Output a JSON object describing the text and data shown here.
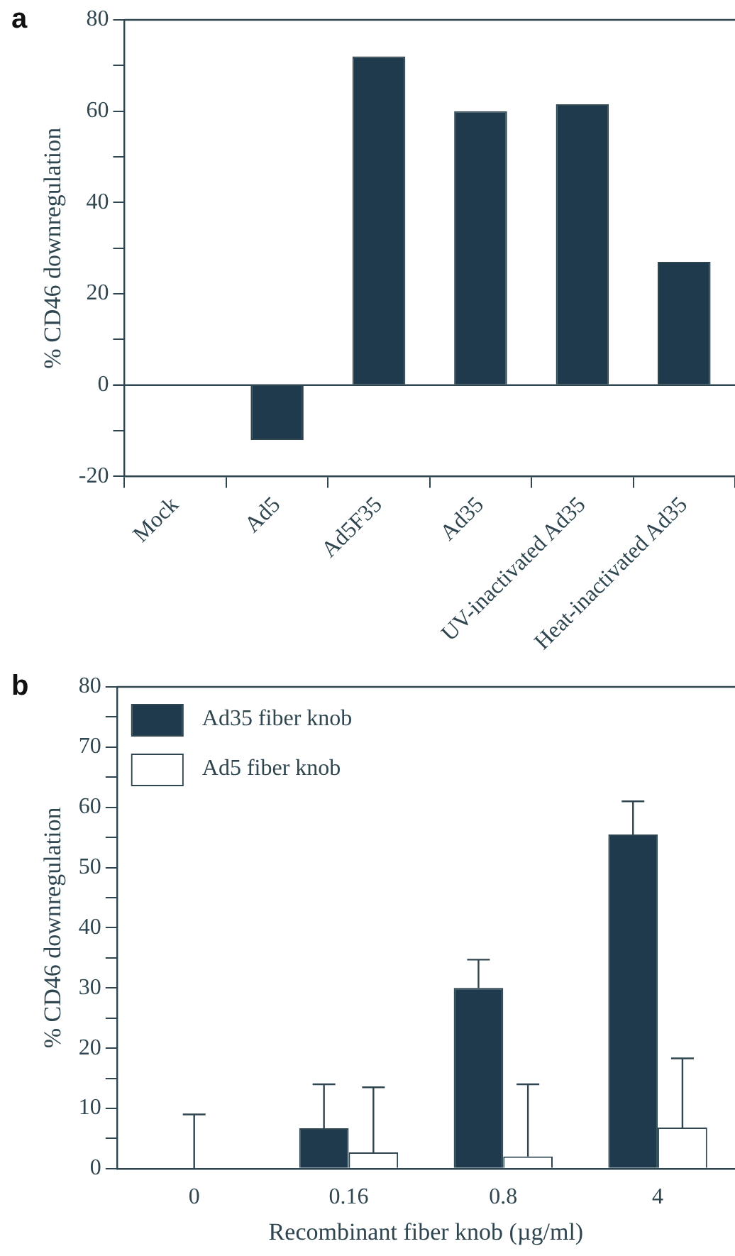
{
  "chart_data": [
    {
      "type": "bar",
      "annotations": [
        "a"
      ],
      "ylabel": "% CD46 downregulation",
      "categories": [
        "Mock",
        "Ad5",
        "Ad5F35",
        "Ad35",
        "UV-inactivated Ad35",
        "Heat-inactivated Ad35"
      ],
      "values": [
        0,
        -12,
        72,
        60,
        61.5,
        27
      ],
      "color": "#1f3a4d",
      "ylim": [
        -20,
        80
      ],
      "yticks": [
        -20,
        {
          "value": -10,
          "label": null
        },
        0,
        {
          "value": 10,
          "label": null
        },
        20,
        {
          "value": 30,
          "label": null
        },
        40,
        {
          "value": 50,
          "label": null
        },
        60,
        {
          "value": 70,
          "label": null
        },
        80
      ],
      "ref_lines": [
        {
          "axis": "y",
          "value": 0,
          "label": null,
          "color": "#2f4650"
        }
      ],
      "grid": false,
      "legend": false
    },
    {
      "type": "bar",
      "annotations": [
        "b"
      ],
      "ylabel": "% CD46 downregulation",
      "xlabel": "Recombinant fiber knob (µg/ml)",
      "categories": [
        "0",
        "0.16",
        "0.8",
        "4"
      ],
      "series": [
        {
          "name": "Ad35 fiber knob",
          "color": "#1f3a4d",
          "values": [
            0,
            6.7,
            30,
            55.5
          ],
          "errors": [
            [
              0,
              9
            ],
            [
              6.7,
              14
            ],
            [
              30,
              34.7
            ],
            [
              55.5,
              61
            ]
          ]
        },
        {
          "name": "Ad5 fiber knob",
          "color": "#ffffff",
          "values": [
            null,
            2.7,
            2,
            6.8
          ],
          "errors": [
            null,
            [
              2.7,
              13.5
            ],
            [
              2,
              14
            ],
            [
              6.8,
              18.3
            ]
          ]
        }
      ],
      "ylim": [
        0,
        80
      ],
      "yticks": [
        0,
        {
          "value": 5,
          "label": null
        },
        10,
        {
          "value": 15,
          "label": null
        },
        20,
        {
          "value": 25,
          "label": null
        },
        30,
        {
          "value": 35,
          "label": null
        },
        40,
        {
          "value": 45,
          "label": null
        },
        50,
        {
          "value": 55,
          "label": null
        },
        60,
        {
          "value": 65,
          "label": null
        },
        70,
        {
          "value": 75,
          "label": null
        },
        80
      ],
      "grid": false,
      "legend": "top left"
    }
  ]
}
